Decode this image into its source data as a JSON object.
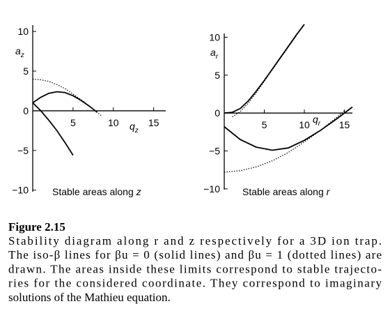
{
  "chart_data": [
    {
      "type": "line",
      "ylabel": {
        "base": "a",
        "sub": "z"
      },
      "xlabel": {
        "base": "q",
        "sub": "z"
      },
      "annotation": {
        "text": "Stable areas along ",
        "var": "z"
      },
      "xlim": [
        0,
        16.5
      ],
      "ylim": [
        -10.2,
        10.8
      ],
      "xticks": [
        5,
        10,
        15
      ],
      "yticks": [
        {
          "value": -10,
          "label": "−10"
        },
        {
          "value": -5,
          "label": "−5"
        },
        0,
        5,
        10
      ],
      "series": [
        {
          "color": "#000000",
          "line_style": "solid",
          "x": [
            0,
            1,
            2,
            3,
            4,
            5,
            6,
            7,
            8
          ],
          "values": [
            1,
            1.7,
            2.2,
            2.4,
            2.3,
            1.9,
            1.3,
            0.6,
            -0.2
          ]
        },
        {
          "color": "#000000",
          "line_style": "solid",
          "x": [
            0,
            1,
            2,
            3,
            4,
            5
          ],
          "values": [
            1,
            0,
            -1.2,
            -2.5,
            -4,
            -5.6
          ]
        },
        {
          "color": "#000000",
          "line_style": "dotted",
          "x": [
            0,
            1,
            2,
            3,
            4,
            5,
            6,
            7,
            8,
            8.5
          ],
          "values": [
            4,
            3.9,
            3.7,
            3.3,
            2.8,
            2.1,
            1.4,
            0.6,
            -0.2,
            -0.6
          ]
        }
      ]
    },
    {
      "type": "line",
      "ylabel": {
        "base": "a",
        "sub": "r"
      },
      "xlabel": {
        "base": "q",
        "sub": "r"
      },
      "annotation": {
        "text": "Stable areas along ",
        "var": "r"
      },
      "xlim": [
        0,
        16
      ],
      "ylim": [
        -10.1,
        10.5
      ],
      "xticks": [
        5,
        10,
        15
      ],
      "yticks": [
        {
          "value": -10,
          "label": "−10"
        },
        {
          "value": -5,
          "label": "−5"
        },
        0,
        5,
        10
      ],
      "series": [
        {
          "color": "#000000",
          "line_style": "solid",
          "x": [
            0,
            1,
            2,
            3,
            4,
            5,
            6,
            7,
            8,
            9,
            10
          ],
          "values": [
            0,
            0.1,
            0.6,
            1.6,
            2.9,
            4.3,
            5.8,
            7.3,
            8.8,
            10.3,
            11.7
          ]
        },
        {
          "color": "#000000",
          "line_style": "dotted",
          "x": [
            1,
            2,
            3,
            4,
            5,
            6,
            7,
            8,
            9
          ],
          "values": [
            -0.5,
            0.2,
            1.3,
            2.7,
            4.2,
            5.7,
            7.2,
            8.7,
            10.2
          ]
        },
        {
          "color": "#000000",
          "line_style": "solid",
          "x": [
            0,
            2,
            4,
            6,
            8,
            10,
            12,
            14,
            16
          ],
          "values": [
            -1.8,
            -3.5,
            -4.5,
            -4.9,
            -4.6,
            -3.6,
            -2.3,
            -0.8,
            0.8
          ]
        },
        {
          "color": "#000000",
          "line_style": "dotted",
          "x": [
            0,
            2,
            4,
            6,
            8,
            10,
            12,
            14,
            15
          ],
          "values": [
            -7.8,
            -7.6,
            -7.1,
            -6.3,
            -5.2,
            -3.8,
            -2.3,
            -0.6,
            0.3
          ]
        }
      ]
    }
  ],
  "caption": {
    "label": "Figure 2.15",
    "lines": [
      "Stability diagram along r and z respectively for a 3D ion trap.",
      "The iso-β lines for βu = 0 (solid lines) and βu = 1 (dotted lines) are",
      "drawn. The areas inside these limits correspond to stable trajecto-",
      "ries for the considered coordinate. They correspond to imaginary",
      "solutions of the Mathieu equation."
    ]
  }
}
